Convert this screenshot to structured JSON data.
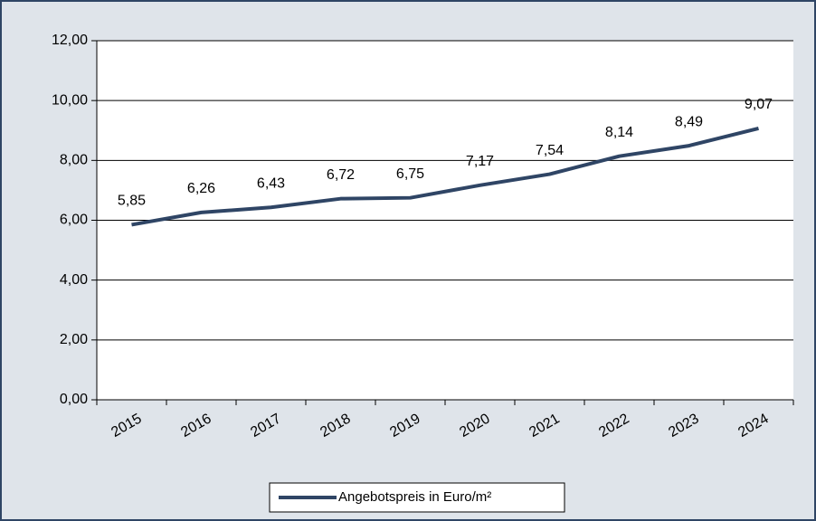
{
  "chart_data": {
    "type": "line",
    "categories": [
      "2015",
      "2016",
      "2017",
      "2018",
      "2019",
      "2020",
      "2021",
      "2022",
      "2023",
      "2024"
    ],
    "series": [
      {
        "name": "Angebotspreis in Euro/m²",
        "color": "#2f4565",
        "values": [
          5.85,
          6.26,
          6.43,
          6.72,
          6.75,
          7.17,
          7.54,
          8.14,
          8.49,
          9.07
        ],
        "value_labels": [
          "5,85",
          "6,26",
          "6,43",
          "6,72",
          "6,75",
          "7,17",
          "7,54",
          "8,14",
          "8,49",
          "9,07"
        ]
      }
    ],
    "ylim": [
      0,
      12
    ],
    "yticks": [
      {
        "value": 0,
        "label": "0,00"
      },
      {
        "value": 2,
        "label": "2,00"
      },
      {
        "value": 4,
        "label": "4,00"
      },
      {
        "value": 6,
        "label": "6,00"
      },
      {
        "value": 8,
        "label": "8,00"
      },
      {
        "value": 10,
        "label": "10,00"
      },
      {
        "value": 12,
        "label": "12,00"
      }
    ],
    "grid": true,
    "legend": "bottom"
  }
}
